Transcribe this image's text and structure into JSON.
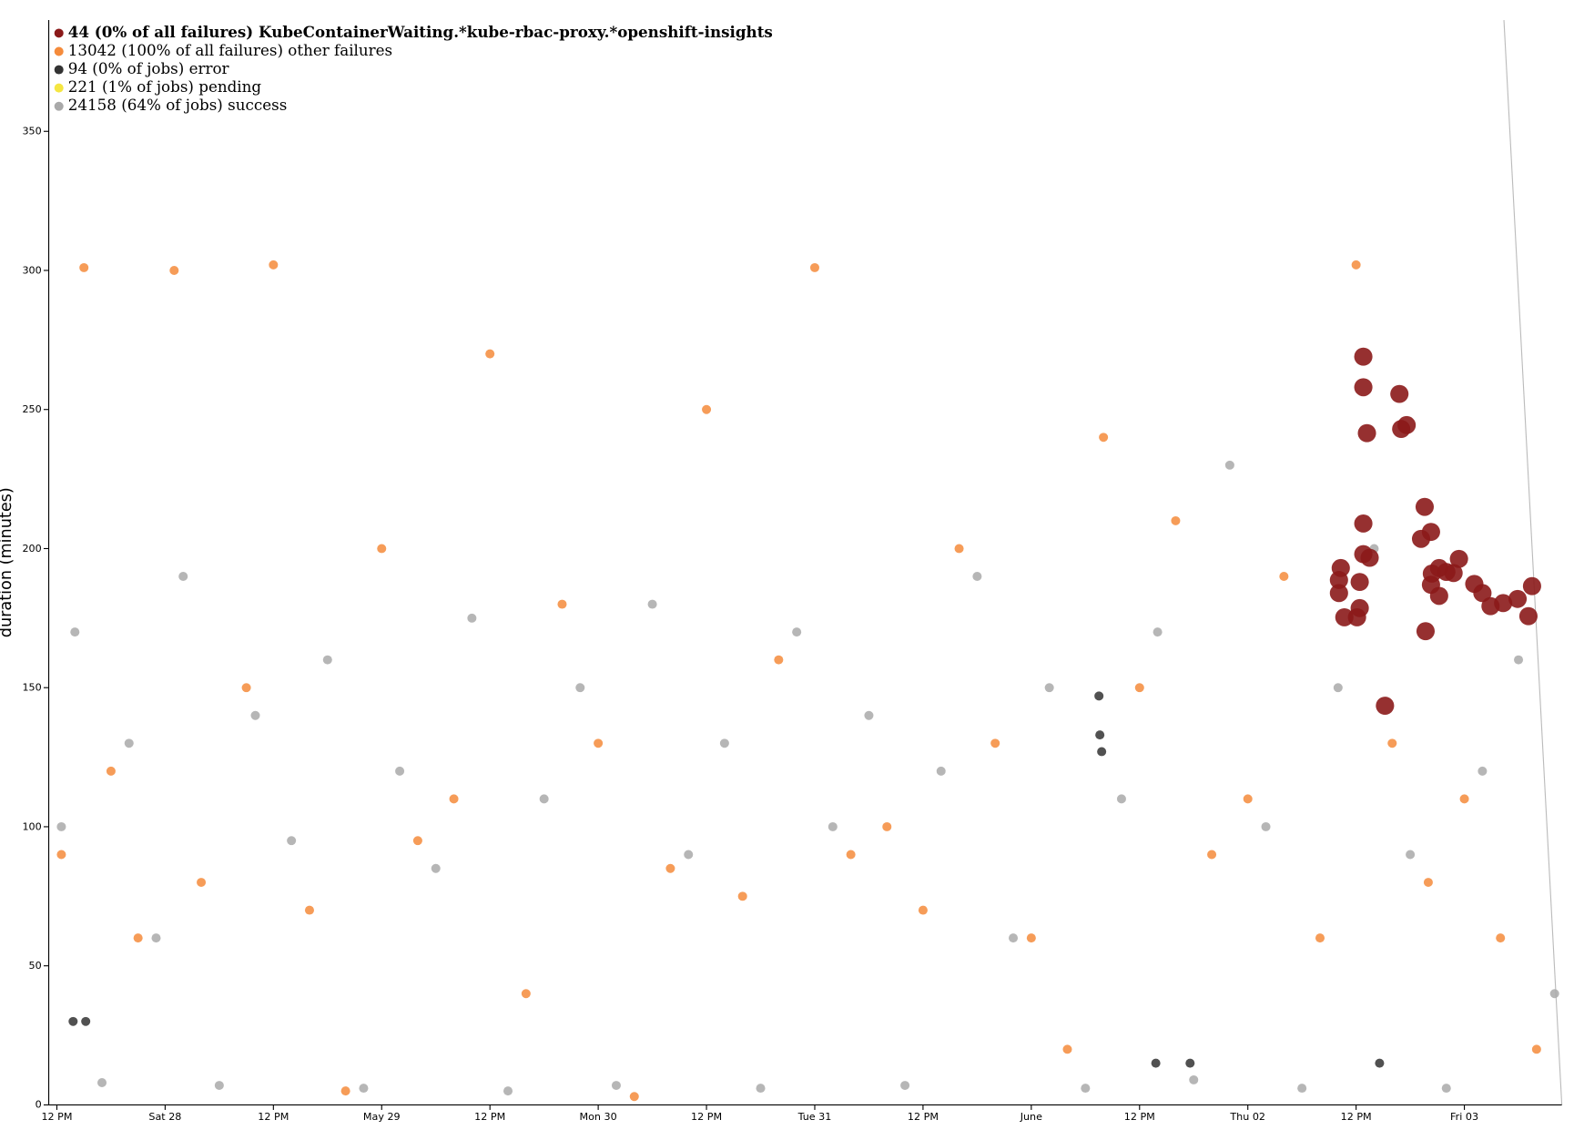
{
  "chart_data": {
    "type": "scatter",
    "y_label": "duration (minutes)",
    "xlim": [
      11.1,
      178.8
    ],
    "ylim": [
      0,
      390
    ],
    "xticks": [
      {
        "value": 12,
        "label": "12 PM"
      },
      {
        "value": 24,
        "label": "Sat 28"
      },
      {
        "value": 36,
        "label": "12 PM"
      },
      {
        "value": 48,
        "label": "May 29"
      },
      {
        "value": 60,
        "label": "12 PM"
      },
      {
        "value": 72,
        "label": "Mon 30"
      },
      {
        "value": 84,
        "label": "12 PM"
      },
      {
        "value": 96,
        "label": "Tue 31"
      },
      {
        "value": 108,
        "label": "12 PM"
      },
      {
        "value": 120,
        "label": "June"
      },
      {
        "value": 132,
        "label": "12 PM"
      },
      {
        "value": 144,
        "label": "Thu 02"
      },
      {
        "value": 156,
        "label": "12 PM"
      },
      {
        "value": 168,
        "label": "Fri 03"
      }
    ],
    "yticks": [
      0,
      50,
      100,
      150,
      200,
      250,
      300,
      350
    ],
    "series": [
      {
        "name": "24158 (64% of jobs) success",
        "color": "#a9a9a9",
        "x": [
          12.5,
          14,
          17,
          20,
          23,
          26,
          30,
          34,
          38,
          42,
          46,
          50,
          54,
          58,
          62,
          66,
          70,
          74,
          78,
          82,
          86,
          90,
          94,
          98,
          102,
          106,
          110,
          114,
          118,
          122,
          126,
          130,
          134,
          138,
          142,
          146,
          150,
          154,
          158,
          162,
          166,
          170,
          174,
          178
        ],
        "values": [
          100,
          170,
          8,
          130,
          60,
          190,
          7,
          140,
          95,
          160,
          6,
          120,
          85,
          175,
          5,
          110,
          150,
          7,
          180,
          90,
          130,
          6,
          170,
          100,
          140,
          7,
          120,
          190,
          60,
          150,
          6,
          110,
          170,
          9,
          230,
          100,
          6,
          150,
          200,
          90,
          6,
          120,
          160,
          40
        ]
      },
      {
        "name": "221 (1% of jobs) pending",
        "color": "#f5e642",
        "x": [],
        "values": []
      },
      {
        "name": "94 (0% of jobs) error",
        "color": "#333333",
        "x": [
          13.8,
          15.2,
          127.5,
          127.6,
          127.8,
          133.8,
          137.6,
          158.6
        ],
        "values": [
          30,
          30,
          147,
          133,
          127,
          15,
          15,
          15
        ]
      },
      {
        "name": "13042 (100% of all failures) other failures",
        "color": "#f58b3b",
        "x": [
          12.5,
          15,
          18,
          21,
          25,
          28,
          33,
          36,
          40,
          44,
          48,
          52,
          56,
          60,
          64,
          68,
          72,
          76,
          80,
          84,
          88,
          92,
          96,
          100,
          104,
          108,
          112,
          116,
          120,
          124,
          128,
          132,
          136,
          140,
          144,
          148,
          152,
          156,
          160,
          164,
          168,
          172,
          176
        ],
        "values": [
          90,
          301,
          120,
          60,
          300,
          80,
          150,
          302,
          70,
          5,
          200,
          95,
          110,
          270,
          40,
          180,
          130,
          3,
          85,
          250,
          75,
          160,
          301,
          90,
          100,
          70,
          200,
          130,
          60,
          20,
          240,
          150,
          210,
          90,
          110,
          190,
          60,
          302,
          130,
          80,
          110,
          60,
          20
        ]
      },
      {
        "name": "44 (0% of all failures) KubeContainerWaiting.*kube-rbac-proxy.*openshift-insights",
        "color": "#8b1a1a",
        "x": [
          156.8,
          156.8,
          157.2,
          161.0,
          160.8,
          161.6,
          163.6,
          164.3,
          163.2,
          154.3,
          154.1,
          154.1,
          154.7,
          156.8,
          156.8,
          157.5,
          156.4,
          156.4,
          156.1,
          164.4,
          165.2,
          166.0,
          166.8,
          164.3,
          165.2,
          169.1,
          170.0,
          170.9,
          172.3,
          173.9,
          175.5,
          175.1,
          163.7,
          159.2,
          167.4
        ],
        "values": [
          269,
          258,
          241.5,
          243,
          255.6,
          244.4,
          215,
          206,
          203.5,
          193,
          188.7,
          184,
          175.3,
          209,
          198,
          196.7,
          188,
          178.6,
          175.3,
          191,
          193,
          191.6,
          191.2,
          187,
          183,
          187.3,
          184,
          179.3,
          180.4,
          181.9,
          186.5,
          175.7,
          170.3,
          143.5,
          196.3
        ]
      }
    ]
  }
}
